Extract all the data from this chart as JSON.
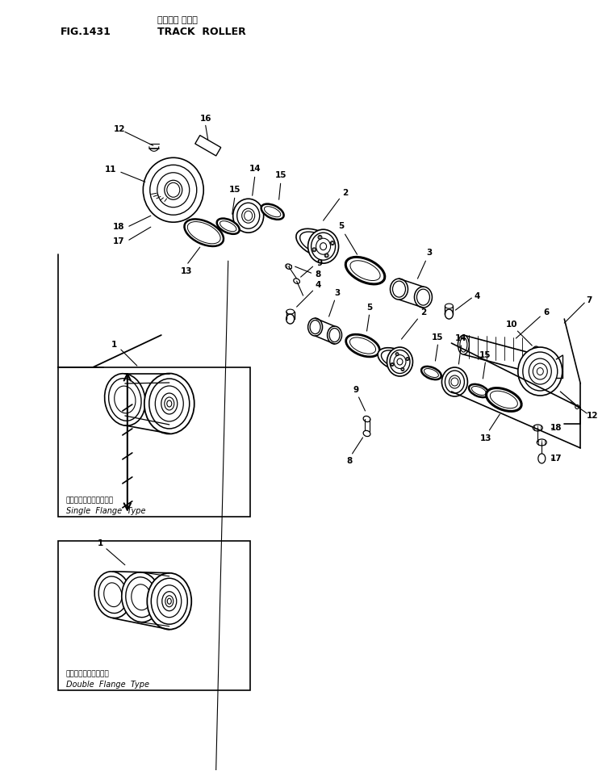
{
  "title_japanese": "トラック ローラ",
  "title_english": "TRACK  ROLLER",
  "fig_number": "FIG.1431",
  "bg_color": "#ffffff",
  "line_color": "#000000",
  "fig_width": 7.41,
  "fig_height": 9.55,
  "dpi": 100,
  "single_flange_japanese": "シングルフランジタイプ",
  "single_flange_english": "Single  Flange  Type",
  "double_flange_japanese": "ダブルフランジタイプ",
  "double_flange_english": "Double  Flange  Type",
  "part_labels": [
    "1",
    "2",
    "3",
    "4",
    "5",
    "6",
    "7",
    "8",
    "9",
    "10",
    "11",
    "12",
    "13",
    "14",
    "15",
    "16",
    "17",
    "18"
  ]
}
